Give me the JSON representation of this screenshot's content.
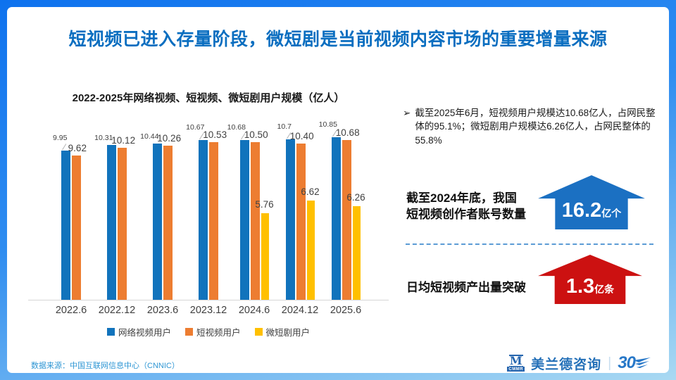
{
  "slide": {
    "title": "短视频已进入存量阶段，微短剧是当前视频内容市场的重要增量来源"
  },
  "chart_data": {
    "type": "bar",
    "title": "2022-2025年网络视频、短视频、微短剧用户规模（亿人）",
    "categories": [
      "2022.6",
      "2022.12",
      "2023.6",
      "2023.12",
      "2024.6",
      "2024.12",
      "2025.6"
    ],
    "series": [
      {
        "name": "网络视频用户",
        "color": "#1173bc",
        "values": [
          9.95,
          10.31,
          10.44,
          10.67,
          10.68,
          10.7,
          10.85
        ],
        "labels": [
          "9.95",
          "10.31",
          "10.44",
          "10.67",
          "10.68",
          "10.7",
          "10.85"
        ]
      },
      {
        "name": "短视频用户",
        "color": "#ed7d31",
        "values": [
          9.62,
          10.12,
          10.26,
          10.53,
          10.5,
          10.4,
          10.68
        ],
        "labels": [
          "9.62",
          "10.12",
          "10.26",
          "10.53",
          "10.50",
          "10.40",
          "10.68"
        ]
      },
      {
        "name": "微短剧用户",
        "color": "#ffc000",
        "values": [
          null,
          null,
          null,
          null,
          5.76,
          6.62,
          6.26
        ],
        "labels": [
          "",
          "",
          "",
          "",
          "5.76",
          "6.62",
          "6.26"
        ]
      }
    ],
    "ylim": [
      0,
      11
    ],
    "grid": false,
    "legend_position": "bottom"
  },
  "right_panel": {
    "bullet_marker": "➢",
    "bullet": "截至2025年6月，短视频用户规模达10.68亿人，占网民整体的95.1%；微短剧用户规模达6.26亿人，占网民整体的55.8%",
    "callout1": {
      "label_line1": "截至2024年底，我国",
      "label_line2": "短视频创作者账号数量",
      "value": "16.2",
      "unit": "亿个",
      "color": "#1b70c2"
    },
    "callout2": {
      "label": "日均短视频产出量突破",
      "value": "1.3",
      "unit": "亿条",
      "color": "#cc1111"
    }
  },
  "footer": {
    "source": "数据来源：中国互联网信息中心（CNNIC）",
    "logo": {
      "m_top": "M",
      "m_bottom": "CMMR",
      "brand": "美兰德咨询",
      "divider": "|",
      "anniversary": "30"
    }
  },
  "colors": {
    "title_blue": "#0a6ec0",
    "frame_blue": "#0e72ee",
    "frame_light": "#a9d9f2",
    "dashed_divider": "#5b9bd5",
    "source_text": "#2e96d4"
  }
}
